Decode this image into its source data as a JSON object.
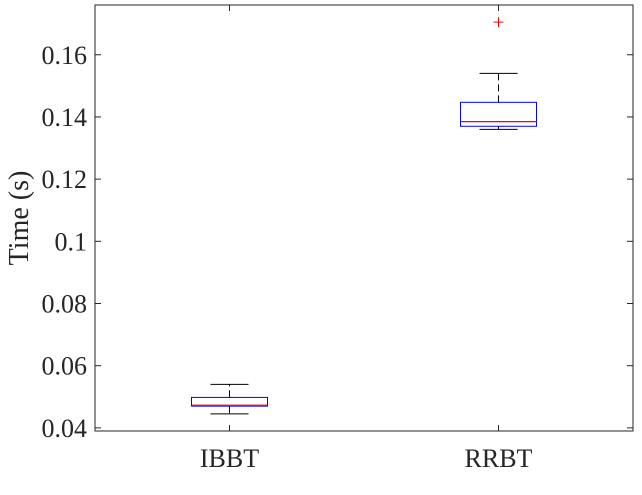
{
  "chart_data": {
    "type": "boxplot",
    "title": "",
    "xlabel": "",
    "ylabel": "Time (s)",
    "ylim": [
      0.039,
      0.176
    ],
    "yticks": [
      0.04,
      0.06,
      0.08,
      0.1,
      0.12,
      0.14,
      0.16
    ],
    "ytick_labels": [
      "0.04",
      "0.06",
      "0.08",
      "0.1",
      "0.12",
      "0.14",
      "0.16"
    ],
    "grid": false,
    "categories": [
      "IBBT",
      "RRBT"
    ],
    "boxes": [
      {
        "category": "IBBT",
        "whisker_low": 0.0445,
        "q1": 0.047,
        "median": 0.0473,
        "q3": 0.0498,
        "whisker_high": 0.054,
        "outliers": []
      },
      {
        "category": "RRBT",
        "whisker_low": 0.136,
        "q1": 0.137,
        "median": 0.1385,
        "q3": 0.1447,
        "whisker_high": 0.154,
        "outliers": [
          0.1705
        ]
      }
    ],
    "colors": {
      "box": "#0000ff",
      "median": "#ff0000",
      "whisker": "#000000",
      "outlier": "#ff0000",
      "axis": "#262626"
    }
  }
}
